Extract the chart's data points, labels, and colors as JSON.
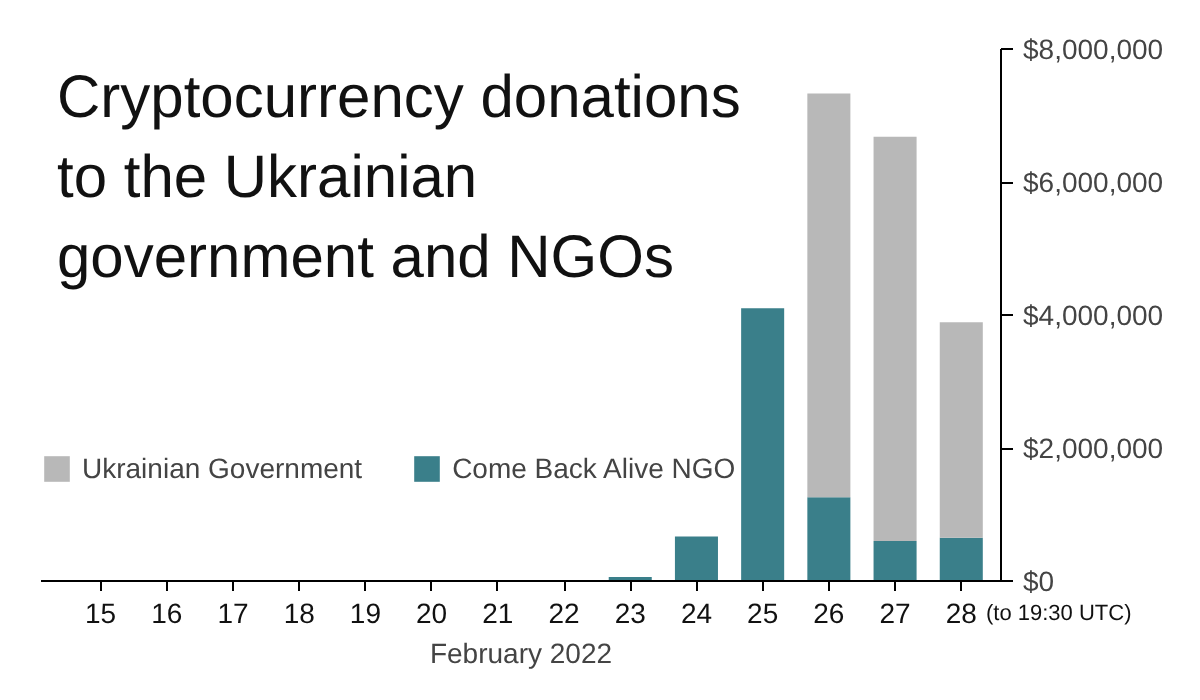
{
  "chart_data": {
    "type": "bar",
    "title": "Cryptocurrency donations\nto the Ukrainian\ngovernment and NGOs",
    "xlabel": "February 2022",
    "stacked": true,
    "legend": "left",
    "categories": [
      "15",
      "16",
      "17",
      "18",
      "19",
      "20",
      "21",
      "22",
      "23",
      "24",
      "25",
      "26",
      "27",
      "28"
    ],
    "series": [
      {
        "name": "Come Back Alive NGO",
        "color": "#3a7f8a",
        "values": [
          10000,
          10000,
          10000,
          10000,
          10000,
          10000,
          10000,
          10000,
          60000,
          670000,
          4100000,
          1260000,
          600000,
          650000
        ]
      },
      {
        "name": "Ukrainian Government",
        "color": "#b8b8b8",
        "values": [
          0,
          0,
          0,
          0,
          0,
          0,
          0,
          0,
          0,
          0,
          0,
          6070000,
          6080000,
          3240000
        ]
      }
    ],
    "ylim": [
      0,
      8000000
    ],
    "yticks": [
      {
        "value": 0,
        "label": "$0"
      },
      {
        "value": 2000000,
        "label": "$2,000,000"
      },
      {
        "value": 4000000,
        "label": "$4,000,000"
      },
      {
        "value": 6000000,
        "label": "$6,000,000"
      },
      {
        "value": 8000000,
        "label": "$8,000,000"
      }
    ],
    "annotations": [
      "(to 19:30 UTC)"
    ]
  }
}
